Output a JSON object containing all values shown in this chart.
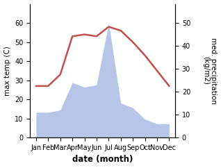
{
  "months": [
    "Jan",
    "Feb",
    "Mar",
    "Apr",
    "May",
    "Jun",
    "Jul",
    "Aug",
    "Sep",
    "Oct",
    "Nov",
    "Dec"
  ],
  "temperature": [
    27,
    27,
    33,
    53,
    54,
    53,
    58,
    56,
    50,
    43,
    35,
    27
  ],
  "precipitation": [
    11,
    11,
    12,
    24,
    22,
    23,
    50,
    15,
    13,
    8,
    6,
    6
  ],
  "temp_color": "#c0504d",
  "precip_fill_color": "#b8c4e8",
  "temp_ylim": [
    0,
    70
  ],
  "temp_yticks": [
    0,
    10,
    20,
    30,
    40,
    50,
    60
  ],
  "precip_ylim": [
    0,
    58.33
  ],
  "precip_yticks": [
    0,
    10,
    20,
    30,
    40,
    50
  ],
  "xlabel": "date (month)",
  "ylabel_left": "max temp (C)",
  "ylabel_right": "med. precipitation\n(kg/m2)",
  "axis_fontsize": 7.5,
  "tick_fontsize": 7,
  "label_fontsize": 8.5
}
